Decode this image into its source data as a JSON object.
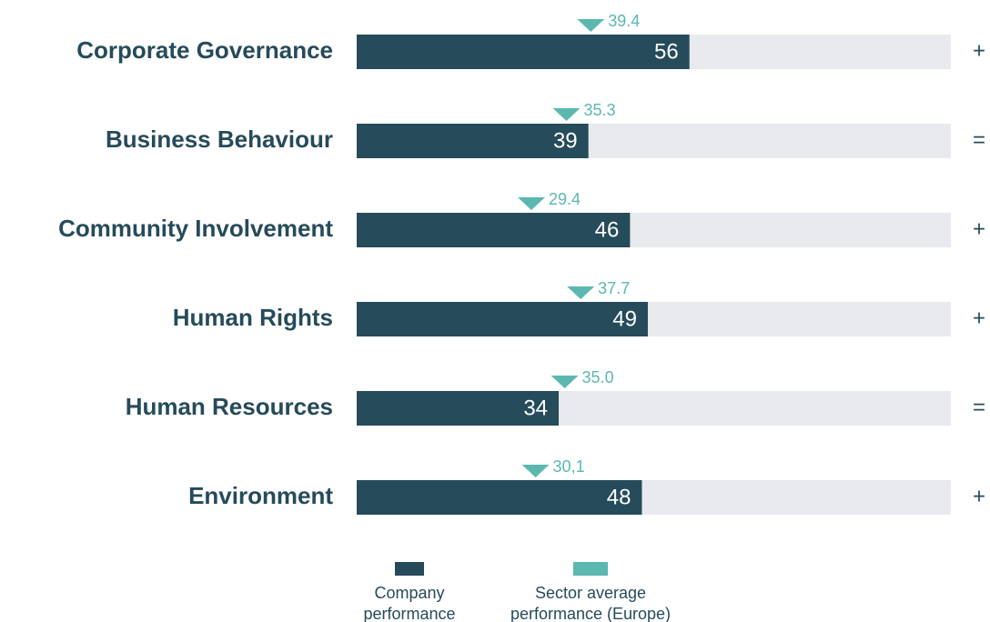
{
  "chart_data": {
    "type": "bar",
    "orientation": "horizontal",
    "categories": [
      "Corporate Governance",
      "Business Behaviour",
      "Community Involvement",
      "Human Rights",
      "Human Resources",
      "Environment"
    ],
    "series": [
      {
        "name": "Company performance",
        "color": "#264b5a",
        "kind": "bar",
        "values": [
          56,
          39,
          46,
          49,
          34,
          48
        ]
      },
      {
        "name": "Sector average performance (Europe)",
        "color": "#5bb8b0",
        "kind": "marker",
        "values": [
          39.4,
          35.3,
          29.4,
          37.7,
          35.0,
          30.1
        ],
        "value_labels": [
          "39.4",
          "35.3",
          "29.4",
          "37.7",
          "35.0",
          "30,1"
        ]
      }
    ],
    "trends": [
      "+",
      "=",
      "+",
      "+",
      "=",
      "+"
    ],
    "xlim": [
      0,
      100
    ],
    "track_color": "#e8eaed"
  }
}
